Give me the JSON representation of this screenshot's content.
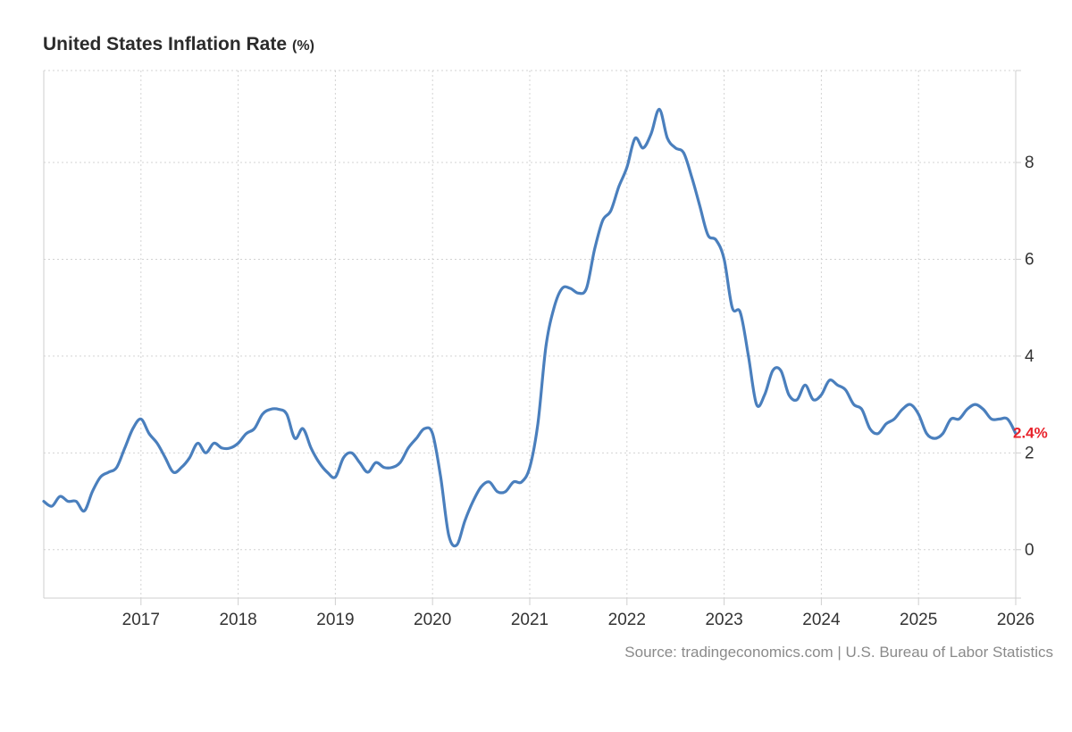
{
  "chart_data": {
    "type": "line",
    "title": "United States Inflation Rate",
    "unit_label": "(%)",
    "source": "Source: tradingeconomics.com | U.S. Bureau of Labor Statistics",
    "x_ticks": [
      "2017",
      "2018",
      "2019",
      "2020",
      "2021",
      "2022",
      "2023",
      "2024",
      "2025",
      "2026"
    ],
    "y_ticks": [
      "0",
      "2",
      "4",
      "6",
      "8"
    ],
    "ylim": [
      -1,
      9.9
    ],
    "xlim": [
      "2016-01",
      "2026-01"
    ],
    "grid": true,
    "y_axis_side": "right",
    "last_value_label": "2.4%",
    "colors": {
      "line": "#4a7fbd",
      "last_label": "#e8222b",
      "grid": "#d3d3d3",
      "axis": "#cfcfcf"
    },
    "series": [
      {
        "x": [
          "2016-01",
          "2016-02",
          "2016-03",
          "2016-04",
          "2016-05",
          "2016-06",
          "2016-07",
          "2016-08",
          "2016-09",
          "2016-10",
          "2016-11",
          "2016-12",
          "2017-01",
          "2017-02",
          "2017-03",
          "2017-04",
          "2017-05",
          "2017-06",
          "2017-07",
          "2017-08",
          "2017-09",
          "2017-10",
          "2017-11",
          "2017-12",
          "2018-01",
          "2018-02",
          "2018-03",
          "2018-04",
          "2018-05",
          "2018-06",
          "2018-07",
          "2018-08",
          "2018-09",
          "2018-10",
          "2018-11",
          "2018-12",
          "2019-01",
          "2019-02",
          "2019-03",
          "2019-04",
          "2019-05",
          "2019-06",
          "2019-07",
          "2019-08",
          "2019-09",
          "2019-10",
          "2019-11",
          "2019-12",
          "2020-01",
          "2020-02",
          "2020-03",
          "2020-04",
          "2020-05",
          "2020-06",
          "2020-07",
          "2020-08",
          "2020-09",
          "2020-10",
          "2020-11",
          "2020-12",
          "2021-01",
          "2021-02",
          "2021-03",
          "2021-04",
          "2021-05",
          "2021-06",
          "2021-07",
          "2021-08",
          "2021-09",
          "2021-10",
          "2021-11",
          "2021-12",
          "2022-01",
          "2022-02",
          "2022-03",
          "2022-04",
          "2022-05",
          "2022-06",
          "2022-07",
          "2022-08",
          "2022-09",
          "2022-10",
          "2022-11",
          "2022-12",
          "2023-01",
          "2023-02",
          "2023-03",
          "2023-04",
          "2023-05",
          "2023-06",
          "2023-07",
          "2023-08",
          "2023-09",
          "2023-10",
          "2023-11",
          "2023-12",
          "2024-01",
          "2024-02",
          "2024-03",
          "2024-04",
          "2024-05",
          "2024-06",
          "2024-07",
          "2024-08",
          "2024-09",
          "2024-10",
          "2024-11",
          "2024-12",
          "2025-01",
          "2025-02",
          "2025-03",
          "2025-04",
          "2025-05",
          "2025-06",
          "2025-07",
          "2025-08",
          "2025-09",
          "2025-10",
          "2025-11",
          "2025-12",
          "2026-01"
        ],
        "values": [
          1.0,
          0.9,
          1.1,
          1.0,
          1.0,
          0.8,
          1.2,
          1.5,
          1.6,
          1.7,
          2.1,
          2.5,
          2.7,
          2.4,
          2.2,
          1.9,
          1.6,
          1.7,
          1.9,
          2.2,
          2.0,
          2.2,
          2.1,
          2.1,
          2.2,
          2.4,
          2.5,
          2.8,
          2.9,
          2.9,
          2.8,
          2.3,
          2.5,
          2.1,
          1.8,
          1.6,
          1.5,
          1.9,
          2.0,
          1.8,
          1.6,
          1.8,
          1.7,
          1.7,
          1.8,
          2.1,
          2.3,
          2.5,
          2.4,
          1.5,
          0.3,
          0.1,
          0.6,
          1.0,
          1.3,
          1.4,
          1.2,
          1.2,
          1.4,
          1.4,
          1.7,
          2.6,
          4.2,
          5.0,
          5.4,
          5.4,
          5.3,
          5.4,
          6.2,
          6.8,
          7.0,
          7.5,
          7.9,
          8.5,
          8.3,
          8.6,
          9.1,
          8.5,
          8.3,
          8.2,
          7.7,
          7.1,
          6.5,
          6.4,
          6.0,
          5.0,
          4.9,
          4.0,
          3.0,
          3.2,
          3.7,
          3.7,
          3.2,
          3.1,
          3.4,
          3.1,
          3.2,
          3.5,
          3.4,
          3.3,
          3.0,
          2.9,
          2.5,
          2.4,
          2.6,
          2.7,
          2.9,
          3.0,
          2.8,
          2.4,
          2.3,
          2.4,
          2.7,
          2.7,
          2.9,
          3.0,
          2.9,
          2.7,
          2.7,
          2.7,
          2.4
        ]
      }
    ]
  }
}
